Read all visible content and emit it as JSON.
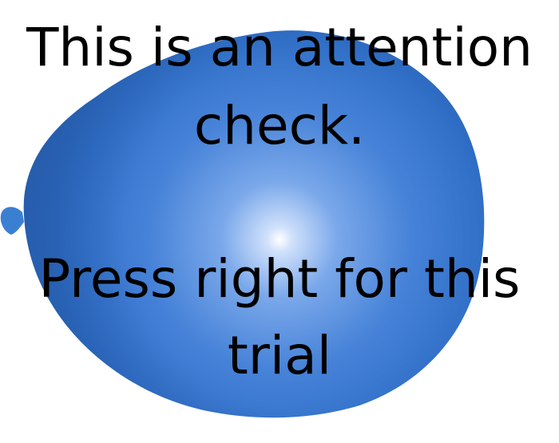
{
  "balloon": {
    "icon": "balloon-image",
    "color": "#3a7ad0"
  },
  "message": {
    "line1": "This is an attention",
    "line2": "check.",
    "line3": "Press right for this",
    "line4": "trial"
  }
}
